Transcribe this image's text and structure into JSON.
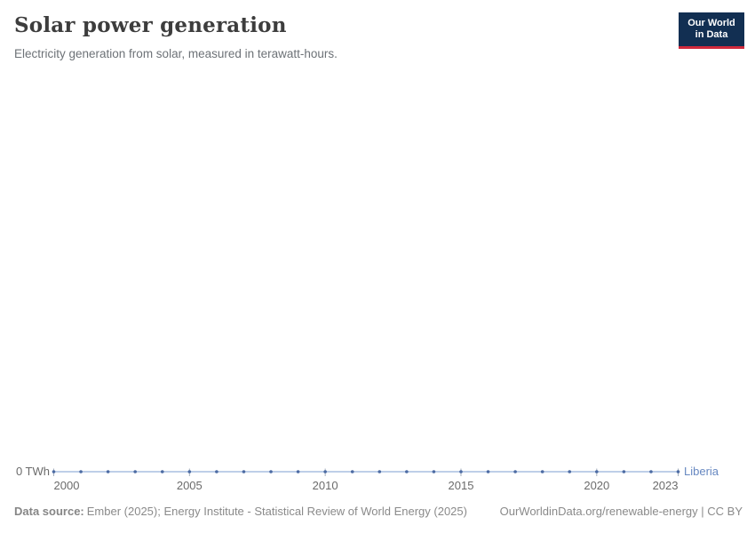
{
  "header": {
    "logo_line1": "Our World",
    "logo_line2": "in Data"
  },
  "chart_data": {
    "type": "line",
    "title": "Solar power generation",
    "subtitle": "Electricity generation from solar, measured in terawatt-hours.",
    "x": [
      2000,
      2001,
      2002,
      2003,
      2004,
      2005,
      2006,
      2007,
      2008,
      2009,
      2010,
      2011,
      2012,
      2013,
      2014,
      2015,
      2016,
      2017,
      2018,
      2019,
      2020,
      2021,
      2022,
      2023
    ],
    "series": [
      {
        "name": "Liberia",
        "values": [
          0,
          0,
          0,
          0,
          0,
          0,
          0,
          0,
          0,
          0,
          0,
          0,
          0,
          0,
          0,
          0,
          0,
          0,
          0,
          0,
          0,
          0,
          0,
          0
        ],
        "line_color": "#a8bfe0",
        "marker_color": "#4c6ba3",
        "label_color": "#6788c1"
      }
    ],
    "x_ticks": [
      2000,
      2005,
      2010,
      2015,
      2020,
      2023
    ],
    "xlim": [
      2000,
      2023
    ],
    "y_axis": {
      "zero_label": "0 TWh",
      "unit": "TWh"
    },
    "ylim": [
      0,
      0
    ],
    "grid": false,
    "legend_position": "end-of-line-label",
    "tick_color": "#a3aebc"
  },
  "footer": {
    "datasource_label": "Data source:",
    "datasource_text": "Ember (2025); Energy Institute - Statistical Review of World Energy (2025)",
    "credit": "OurWorldinData.org/renewable-energy | CC BY"
  }
}
